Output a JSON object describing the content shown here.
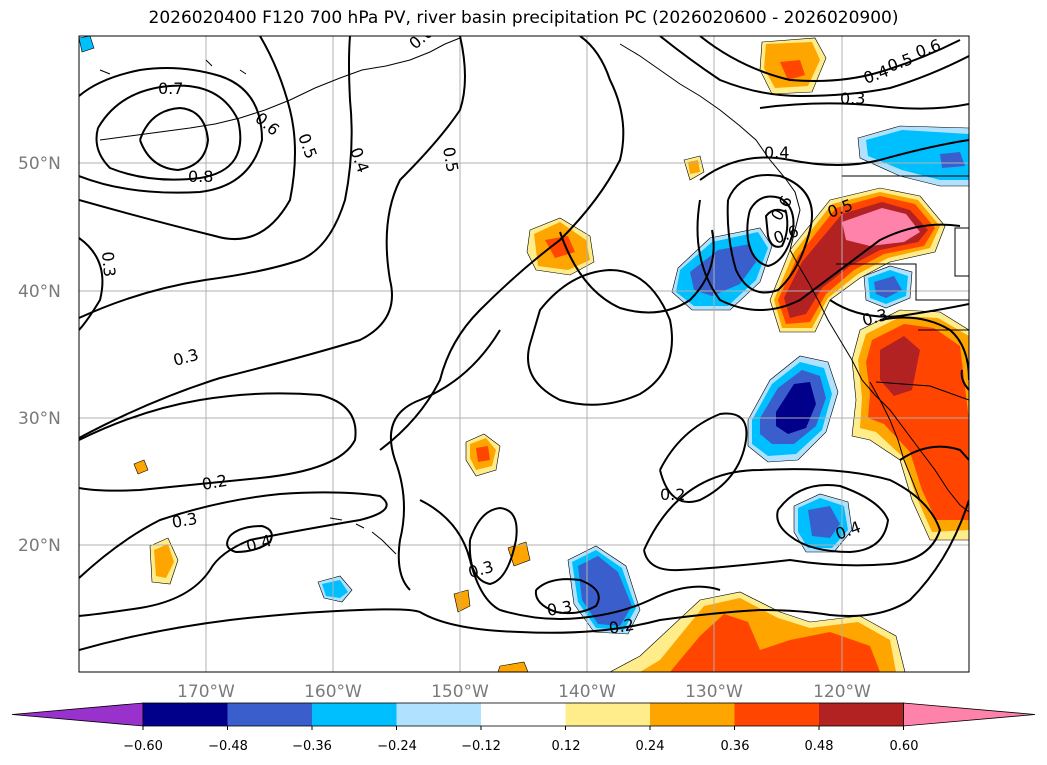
{
  "title": "2026020400 F120 700 hPa PV, river basin precipitation PC (2026020600 - 2026020900)",
  "map": {
    "lon_labels": [
      "170°W",
      "160°W",
      "150°W",
      "140°W",
      "130°W",
      "120°W"
    ],
    "lat_labels": [
      "50°N",
      "40°N",
      "30°N",
      "20°N"
    ],
    "contour_labels": [
      "0.7",
      "0.6",
      "0.5",
      "0.4",
      "0.5",
      "0.6",
      "0.8",
      "0.3",
      "0.3",
      "0.2",
      "0.3",
      "0.4",
      "0.2",
      "0.3",
      "0.3",
      "0.2",
      "0.4",
      "0.4",
      "0.5",
      "0.6",
      "0.3",
      "0.3",
      "0.4",
      "0.5",
      "0.6",
      "0.6"
    ]
  },
  "colorbar": {
    "ticks": [
      "−0.60",
      "−0.48",
      "−0.36",
      "−0.24",
      "−0.12",
      "0.12",
      "0.24",
      "0.36",
      "0.48",
      "0.60"
    ],
    "colors": [
      "#9932cc",
      "#00008b",
      "#3a5fcd",
      "#00bfff",
      "#b0e2ff",
      "#ffffff",
      "#ffec8b",
      "#ffa500",
      "#ff4500",
      "#b22222",
      "#ff82ab"
    ]
  }
}
